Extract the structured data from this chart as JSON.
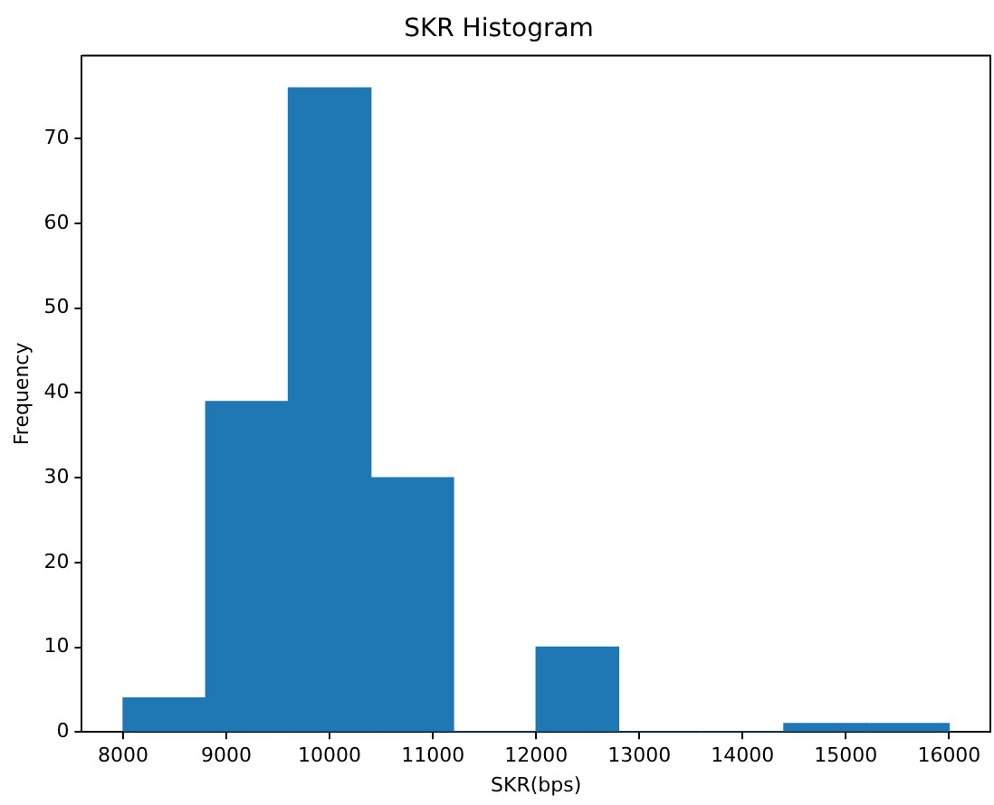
{
  "chart_data": {
    "type": "histogram",
    "title": "SKR Histogram",
    "xlabel": "SKR(bps)",
    "ylabel": "Frequency",
    "bins": [
      8000,
      8800,
      9600,
      10400,
      11200,
      12000,
      12800,
      13600,
      14400,
      15200,
      16000
    ],
    "values": [
      4,
      39,
      76,
      30,
      0,
      10,
      0,
      0,
      1,
      1
    ],
    "color": "#1f77b4",
    "xlim": [
      7600,
      16400
    ],
    "xticks": [
      8000,
      9000,
      10000,
      11000,
      12000,
      13000,
      14000,
      15000,
      16000
    ],
    "ylim": [
      0,
      79.8
    ],
    "yticks": [
      0,
      10,
      20,
      30,
      40,
      50,
      60,
      70
    ],
    "grid": false,
    "legend": false
  }
}
